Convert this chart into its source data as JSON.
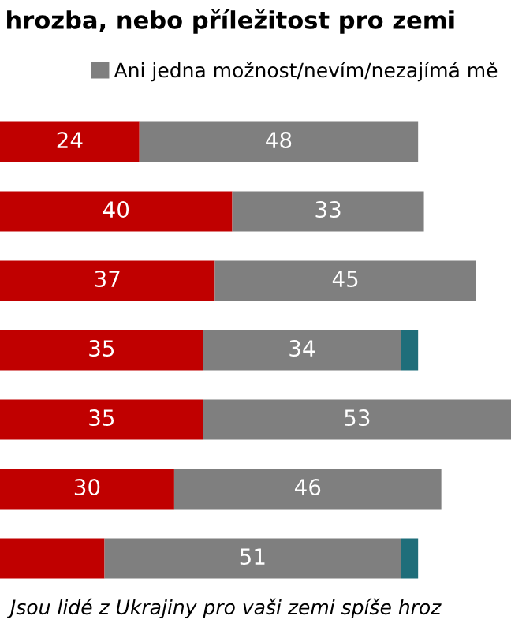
{
  "chart_data": {
    "type": "bar",
    "orientation": "horizontal",
    "stacked": true,
    "title": "hrozba, nebo příležitost pro zemi",
    "categories": [
      null,
      null,
      null,
      null,
      null,
      null,
      null
    ],
    "series": [
      {
        "color": "#c00000",
        "values": [
          24,
          40,
          37,
          35,
          35,
          30,
          18
        ],
        "value_labels": [
          "24",
          "40",
          "37",
          "35",
          "35",
          "30",
          null
        ]
      },
      {
        "name": "Ani jedna možnost/nevím/nezajímá mě",
        "color": "#7f7f7f",
        "values": [
          48,
          33,
          45,
          34,
          53,
          46,
          51
        ],
        "value_labels": [
          "48",
          "33",
          "45",
          "34",
          "53",
          "46",
          "51"
        ]
      },
      {
        "color": "#1f6e7a",
        "values": [
          null,
          null,
          null,
          3,
          null,
          null,
          3
        ]
      }
    ],
    "tick_labels": false,
    "legend": "top right",
    "annotations": [
      "Jsou lidé z Ukrajiny pro vaši zemi spíše hroz"
    ]
  }
}
